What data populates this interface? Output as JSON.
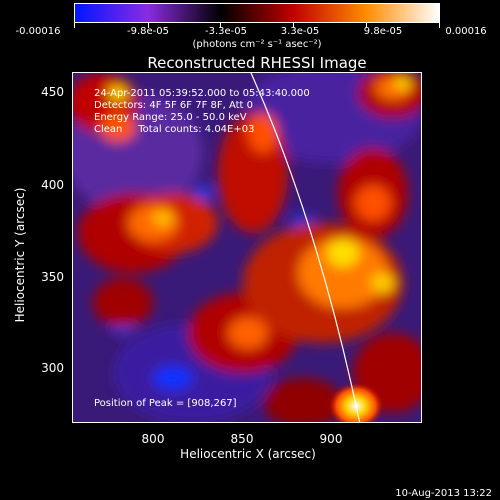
{
  "colorbar": {
    "labels": [
      "-0.00016",
      "-9.8e-05",
      "-3.3e-05",
      "3.3e-05",
      "9.8e-05",
      "0.00016"
    ],
    "units": "(photons cm⁻² s⁻¹ asec⁻²)",
    "colors": [
      "#0016ff",
      "#8a2be2",
      "#000000",
      "#c00000",
      "#ff8c00",
      "#ffffff"
    ]
  },
  "title": "Reconstructed RHESSI Image",
  "info": {
    "time": "24-Apr-2011 05:39:52.000 to 05:43:40.000",
    "detectors": "Detectors: 4F 5F 6F 7F 8F, Att 0",
    "energy": "Energy Range: 25.0 - 50.0 keV",
    "clean": "Clean     Total counts: 4.04E+03"
  },
  "peak": "Position of Peak = [908,267]",
  "axes": {
    "x_label": "Heliocentric X (arcsec)",
    "y_label": "Heliocentric Y (arcsec)",
    "x_ticks": [
      "800",
      "850",
      "900"
    ],
    "y_ticks": [
      "450",
      "400",
      "350",
      "300"
    ]
  },
  "date": "10-Aug-2013 13:22"
}
